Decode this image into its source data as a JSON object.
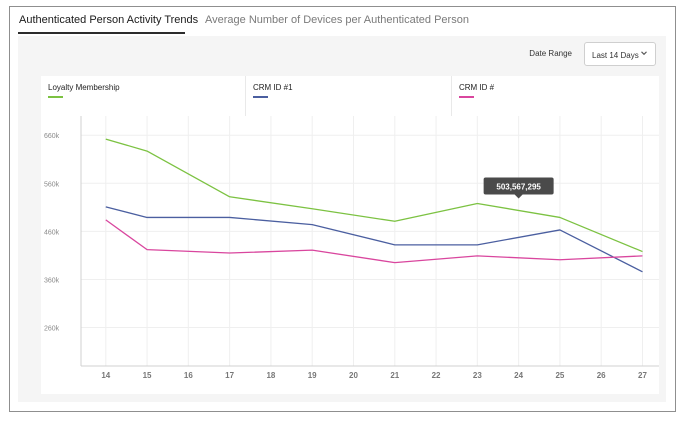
{
  "tabs": [
    {
      "label": "Authenticated Person Activity Trends",
      "active": true
    },
    {
      "label": "Average Number of Devices per Authenticated Person",
      "active": false
    }
  ],
  "date_range": {
    "label": "Date Range",
    "value": "Last 14 Days"
  },
  "legend": [
    {
      "name": "Loyalty Membership",
      "color": "#7cc242"
    },
    {
      "name": "CRM ID #1",
      "color": "#4b5fa0"
    },
    {
      "name": "CRM ID #",
      "color": "#d9469e"
    }
  ],
  "tooltip": {
    "value": "503,567,295"
  },
  "chart_data": {
    "type": "line",
    "x": [
      14,
      15,
      16,
      17,
      18,
      19,
      20,
      21,
      22,
      23,
      24,
      25,
      26,
      27
    ],
    "x_tick_labels": [
      "14",
      "15",
      "16",
      "17",
      "18",
      "19",
      "20",
      "21",
      "22",
      "23",
      "24",
      "25",
      "26",
      "27"
    ],
    "y_tick_labels": [
      "660k",
      "560k",
      "460k",
      "360k",
      "260k"
    ],
    "y_tick_values": [
      660,
      560,
      460,
      360,
      260
    ],
    "ylim": [
      180,
      700
    ],
    "xlim": [
      13.4,
      27.4
    ],
    "grid": true,
    "series": [
      {
        "name": "Loyalty Membership",
        "color": "#7cc242",
        "x": [
          14,
          15,
          17,
          19,
          21,
          23,
          25,
          27
        ],
        "values": [
          652,
          627,
          532,
          507,
          481,
          518,
          489,
          418
        ]
      },
      {
        "name": "CRM ID #1",
        "color": "#4b5fa0",
        "x": [
          14,
          15,
          17,
          19,
          21,
          23,
          25,
          27
        ],
        "values": [
          511,
          489,
          489,
          474,
          432,
          432,
          463,
          376
        ]
      },
      {
        "name": "CRM ID #",
        "color": "#d9469e",
        "x": [
          14,
          15,
          17,
          19,
          21,
          23,
          25,
          27
        ],
        "values": [
          484,
          422,
          415,
          421,
          395,
          409,
          401,
          409
        ]
      }
    ],
    "tooltip_point": {
      "x": 24,
      "value": 518
    }
  }
}
